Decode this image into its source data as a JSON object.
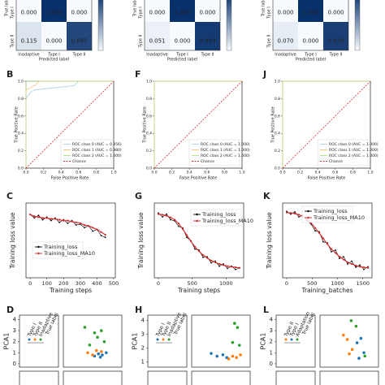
{
  "chart_data": [
    {
      "type": "heatmap",
      "x_label": "Predicted label",
      "y_label": "True label",
      "categories": [
        "Inadaptive",
        "Type I",
        "Type II"
      ],
      "rows": [
        "Type I",
        "Type II"
      ],
      "values": [
        [
          0,
          1,
          0
        ],
        [
          0.115,
          0,
          0.885
        ]
      ],
      "value_labels": [
        [
          "0.000",
          "1.000",
          "0.000"
        ],
        [
          "0.115",
          "0.000",
          "0.885"
        ]
      ],
      "colormap": [
        "#f7fbff",
        "#08306b"
      ]
    },
    {
      "type": "heatmap",
      "x_label": "Predicted label",
      "y_label": "True label",
      "categories": [
        "Inadaptive",
        "Type I",
        "Type II"
      ],
      "rows": [
        "Type I",
        "Type II"
      ],
      "values": [
        [
          0,
          1,
          0
        ],
        [
          0.051,
          0,
          0.949
        ]
      ],
      "value_labels": [
        [
          "0.000",
          "1.000",
          "0.000"
        ],
        [
          "0.051",
          "0.000",
          "0.949"
        ]
      ],
      "colormap": [
        "#f7fbff",
        "#08306b"
      ]
    },
    {
      "type": "heatmap",
      "x_label": "Predicted label",
      "y_label": "True label",
      "categories": [
        "Inadaptive",
        "Type I",
        "Type II"
      ],
      "rows": [
        "Type I",
        "Type II"
      ],
      "values": [
        [
          0,
          1,
          0
        ],
        [
          0.07,
          0,
          0.93
        ]
      ],
      "value_labels": [
        [
          "0.000",
          "1.000",
          "0.000"
        ],
        [
          "0.070",
          "0.000",
          "0.930"
        ]
      ],
      "colormap": [
        "#f7fbff",
        "#08306b"
      ]
    },
    {
      "type": "line",
      "panel": "B",
      "x_label": "False Positive Rate",
      "y_label": "True Positive Rate",
      "xlim": [
        0,
        1
      ],
      "ylim": [
        0,
        1
      ],
      "xticks": [
        {
          "value": 0,
          "label": "0.0"
        },
        0.2,
        0.4,
        0.6,
        0.8,
        {
          "value": 1,
          "label": "1.0"
        }
      ],
      "yticks": [
        {
          "value": 0,
          "label": "0.0"
        },
        0.2,
        0.4,
        0.6,
        0.8,
        {
          "value": 1,
          "label": "1.0"
        }
      ],
      "legend": "lower right",
      "series": [
        {
          "name": "ROC class 0 (AUC = 0.956)",
          "color": "#a6cee3",
          "x": [
            0,
            0,
            0.05,
            0.1,
            0.55,
            0.6,
            1
          ],
          "values": [
            0,
            0.8,
            0.87,
            0.9,
            0.95,
            1,
            1
          ]
        },
        {
          "name": "ROC class 1 (AUC = 0.980)",
          "color": "#fdbf6f",
          "x": [
            0,
            0,
            0.1,
            0.15,
            1
          ],
          "values": [
            0,
            0.9,
            0.95,
            1,
            1
          ]
        },
        {
          "name": "ROC class 2 (AUC = 1.000)",
          "color": "#b2df8a",
          "x": [
            0,
            0,
            1
          ],
          "values": [
            0,
            1,
            1
          ]
        },
        {
          "name": "Chance",
          "color": "#d62728",
          "dash": true,
          "x": [
            0,
            1
          ],
          "values": [
            0,
            1
          ]
        }
      ]
    },
    {
      "type": "line",
      "panel": "F",
      "x_label": "False Positive Rate",
      "y_label": "True Positive Rate",
      "xlim": [
        0,
        1
      ],
      "ylim": [
        0,
        1
      ],
      "xticks": [
        {
          "value": 0,
          "label": "0.0"
        },
        0.2,
        0.4,
        0.6,
        0.8,
        {
          "value": 1,
          "label": "1.0"
        }
      ],
      "yticks": [
        {
          "value": 0,
          "label": "0.0"
        },
        0.2,
        0.4,
        0.6,
        0.8,
        {
          "value": 1,
          "label": "1.0"
        }
      ],
      "legend": "lower right",
      "series": [
        {
          "name": "ROC class 0 (AUC = 1.000)",
          "color": "#a6cee3",
          "x": [
            0,
            0,
            1
          ],
          "values": [
            0,
            1,
            1
          ]
        },
        {
          "name": "ROC class 1 (AUC = 1.000)",
          "color": "#fdbf6f",
          "x": [
            0,
            0,
            1
          ],
          "values": [
            0,
            1,
            1
          ]
        },
        {
          "name": "ROC class 2 (AUC = 1.000)",
          "color": "#b2df8a",
          "x": [
            0,
            0,
            1
          ],
          "values": [
            0,
            1,
            1
          ]
        },
        {
          "name": "Chance",
          "color": "#d62728",
          "dash": true,
          "x": [
            0,
            1
          ],
          "values": [
            0,
            1
          ]
        }
      ]
    },
    {
      "type": "line",
      "panel": "J",
      "x_label": "False Positive Rate",
      "y_label": "True Positive Rate",
      "xlim": [
        0,
        1
      ],
      "ylim": [
        0,
        1
      ],
      "xticks": [
        {
          "value": 0,
          "label": "0.0"
        },
        0.2,
        0.4,
        0.6,
        0.8,
        {
          "value": 1,
          "label": "1.0"
        }
      ],
      "yticks": [
        {
          "value": 0,
          "label": "0.0"
        },
        0.2,
        0.4,
        0.6,
        0.8,
        {
          "value": 1,
          "label": "1.0"
        }
      ],
      "legend": "lower right",
      "series": [
        {
          "name": "ROC class 0 (AUC = 1.000)",
          "color": "#a6cee3",
          "x": [
            0,
            0,
            1
          ],
          "values": [
            0,
            1,
            1
          ]
        },
        {
          "name": "ROC class 1 (AUC = 1.000)",
          "color": "#fdbf6f",
          "x": [
            0,
            0,
            1
          ],
          "values": [
            0,
            1,
            1
          ]
        },
        {
          "name": "ROC class 2 (AUC = 1.000)",
          "color": "#b2df8a",
          "x": [
            0,
            0,
            1
          ],
          "values": [
            0,
            1,
            1
          ]
        },
        {
          "name": "Chance",
          "color": "#d62728",
          "dash": true,
          "x": [
            0,
            1
          ],
          "values": [
            0,
            1
          ]
        }
      ]
    },
    {
      "type": "line",
      "panel": "C",
      "x_label": "Training steps",
      "y_label": "Training loss value",
      "xlim": [
        -25,
        510
      ],
      "ylim": [
        0.4,
        1.25
      ],
      "xticks": [
        0,
        100,
        200,
        300,
        400,
        500
      ],
      "legend": "center left",
      "series": [
        {
          "name": "Training_loss",
          "color": "#000000",
          "markers": true,
          "x": [
            0,
            25,
            50,
            75,
            100,
            125,
            150,
            175,
            200,
            225,
            250,
            275,
            300,
            325,
            350,
            375,
            400,
            425,
            450
          ],
          "values": [
            1.12,
            1.08,
            1.11,
            1.06,
            1.09,
            1.05,
            1.08,
            1.03,
            1.06,
            1.02,
            1.05,
            1.0,
            1.01,
            0.97,
            0.99,
            0.93,
            0.95,
            0.88,
            0.86
          ]
        },
        {
          "name": "Training_loss_MA10",
          "color": "#d62728",
          "x": [
            0,
            25,
            50,
            75,
            100,
            125,
            150,
            175,
            200,
            225,
            250,
            275,
            300,
            325,
            350,
            375,
            400,
            425,
            450
          ],
          "values": [
            1.12,
            1.1,
            1.09,
            1.08,
            1.08,
            1.07,
            1.07,
            1.06,
            1.05,
            1.05,
            1.04,
            1.03,
            1.02,
            1.0,
            0.99,
            0.97,
            0.95,
            0.92,
            0.89
          ]
        }
      ]
    },
    {
      "type": "line",
      "panel": "G",
      "x_label": "Training steps",
      "y_label": "Training loss value",
      "xlim": [
        -60,
        1260
      ],
      "ylim": [
        -0.05,
        1.3
      ],
      "xticks": [
        0,
        500,
        1000
      ],
      "legend": "upper right",
      "series": [
        {
          "name": "Training_loss",
          "color": "#000000",
          "markers": true,
          "x": [
            0,
            60,
            120,
            180,
            240,
            300,
            360,
            420,
            480,
            540,
            600,
            660,
            720,
            780,
            840,
            900,
            960,
            1020,
            1080,
            1140,
            1200
          ],
          "values": [
            1.12,
            1.05,
            1.1,
            1.0,
            0.98,
            0.88,
            0.85,
            0.68,
            0.62,
            0.47,
            0.45,
            0.32,
            0.33,
            0.22,
            0.25,
            0.16,
            0.2,
            0.12,
            0.16,
            0.1,
            0.13
          ]
        },
        {
          "name": "Training_loss_MA10",
          "color": "#d62728",
          "x": [
            0,
            60,
            120,
            180,
            240,
            300,
            360,
            420,
            480,
            540,
            600,
            660,
            720,
            780,
            840,
            900,
            960,
            1020,
            1080,
            1140,
            1200
          ],
          "values": [
            1.1,
            1.09,
            1.07,
            1.04,
            1.0,
            0.93,
            0.83,
            0.72,
            0.61,
            0.51,
            0.43,
            0.36,
            0.31,
            0.26,
            0.23,
            0.2,
            0.18,
            0.16,
            0.15,
            0.14,
            0.13
          ]
        }
      ]
    },
    {
      "type": "line",
      "panel": "K",
      "x_label": "Training_batches",
      "y_label": "Training loss value",
      "xlim": [
        -80,
        1680
      ],
      "ylim": [
        -0.05,
        1.3
      ],
      "xticks": [
        0,
        500,
        1000,
        1500
      ],
      "legend": "upper center",
      "series": [
        {
          "name": "Training_loss",
          "color": "#000000",
          "markers": true,
          "x": [
            0,
            80,
            160,
            240,
            320,
            400,
            480,
            560,
            640,
            720,
            800,
            880,
            960,
            1040,
            1120,
            1200,
            1280,
            1360,
            1440,
            1520,
            1600
          ],
          "values": [
            1.15,
            1.1,
            1.14,
            1.05,
            1.08,
            0.98,
            0.92,
            0.8,
            0.78,
            0.6,
            0.58,
            0.42,
            0.45,
            0.3,
            0.33,
            0.2,
            0.25,
            0.14,
            0.18,
            0.1,
            0.15
          ]
        },
        {
          "name": "Training_loss_MA10",
          "color": "#d62728",
          "x": [
            0,
            80,
            160,
            240,
            320,
            400,
            480,
            560,
            640,
            720,
            800,
            880,
            960,
            1040,
            1120,
            1200,
            1280,
            1360,
            1440,
            1520,
            1600
          ],
          "values": [
            1.13,
            1.12,
            1.11,
            1.09,
            1.06,
            1.01,
            0.94,
            0.85,
            0.76,
            0.66,
            0.56,
            0.47,
            0.4,
            0.33,
            0.28,
            0.23,
            0.2,
            0.17,
            0.15,
            0.14,
            0.13
          ]
        }
      ]
    },
    {
      "type": "scatter",
      "panel": "D",
      "y_label": "PCA1",
      "legend_title": "True label",
      "xlim": [
        -3,
        3
      ],
      "ylim": [
        -0.3,
        4.4
      ],
      "yticks": [
        0,
        1,
        2,
        3,
        4
      ],
      "series": [
        {
          "name": "Type I",
          "color": "#1f77b4",
          "x": [
            0.2,
            0.6,
            1.0,
            1.4,
            0.8
          ],
          "values": [
            0.7,
            0.9,
            0.8,
            1.0,
            0.6
          ]
        },
        {
          "name": "Type II",
          "color": "#ff7f0e",
          "x": [
            -0.5,
            0.0,
            0.4,
            0.9
          ],
          "values": [
            1.0,
            0.8,
            1.2,
            1.1
          ]
        },
        {
          "name": "Inadaptive",
          "color": "#2ca02c",
          "x": [
            -0.8,
            0.2,
            0.5,
            1.2,
            -0.3,
            0.9
          ],
          "values": [
            3.3,
            2.8,
            2.4,
            2.0,
            1.7,
            3.0
          ]
        }
      ]
    },
    {
      "type": "scatter",
      "panel": "H",
      "y_label": "PCA1",
      "legend_title": "True label",
      "xlim": [
        -3,
        3
      ],
      "ylim": [
        0.6,
        4.4
      ],
      "yticks": [
        1,
        2,
        3,
        4
      ],
      "series": [
        {
          "name": "Type I",
          "color": "#1f77b4",
          "x": [
            -1.0,
            -0.4,
            0.2,
            0.6
          ],
          "values": [
            1.6,
            1.4,
            1.5,
            1.3
          ]
        },
        {
          "name": "Type II",
          "color": "#ff7f0e",
          "x": [
            0.8,
            1.2,
            1.6,
            2.0
          ],
          "values": [
            1.2,
            1.4,
            1.3,
            1.5
          ]
        },
        {
          "name": "Inadaptive",
          "color": "#2ca02c",
          "x": [
            1.4,
            1.7,
            1.2,
            1.9
          ],
          "values": [
            3.8,
            3.5,
            2.4,
            2.2
          ]
        }
      ]
    },
    {
      "type": "scatter",
      "panel": "L",
      "y_label": "PCA1",
      "legend_title": "True label",
      "xlim": [
        -3,
        3
      ],
      "ylim": [
        -0.3,
        4.4
      ],
      "yticks": [
        0,
        1,
        2,
        3,
        4
      ],
      "series": [
        {
          "name": "Type II",
          "color": "#ff7f0e",
          "x": [
            -0.6,
            -0.2,
            0.3,
            0.0
          ],
          "values": [
            2.6,
            2.2,
            1.3,
            0.9
          ]
        },
        {
          "name": "Type I",
          "color": "#1f77b4",
          "x": [
            0.8,
            1.2,
            1.5,
            1.0
          ],
          "values": [
            1.9,
            2.3,
            1.0,
            0.5
          ]
        },
        {
          "name": "Adaptation",
          "color": "#2ca02c",
          "x": [
            0.2,
            0.7,
            1.6
          ],
          "values": [
            3.9,
            3.4,
            0.7
          ]
        }
      ]
    }
  ]
}
